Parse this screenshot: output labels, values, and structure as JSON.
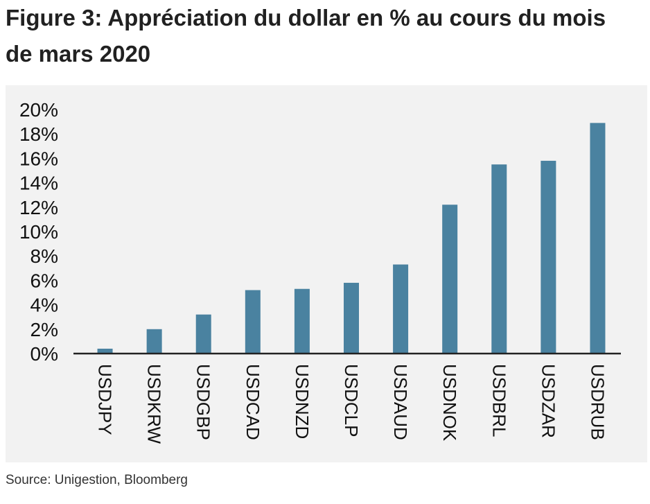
{
  "title": "Figure 3: Appréciation du dollar en % au cours du mois de mars 2020",
  "source": "Source: Unigestion, Bloomberg",
  "colors": {
    "bar": "#4a82a0",
    "panel_background": "#f2f2f2",
    "axis": "#222222"
  },
  "chart_data": {
    "type": "bar",
    "title": "",
    "xlabel": "",
    "ylabel": "",
    "categories": [
      "USDJPY",
      "USDKRW",
      "USDGBP",
      "USDCAD",
      "USDNZD",
      "USDCLP",
      "USDAUD",
      "USDNOK",
      "USDBRL",
      "USDZAR",
      "USDRUB"
    ],
    "values": [
      0.4,
      2.0,
      3.2,
      5.2,
      5.3,
      5.8,
      7.3,
      12.2,
      15.5,
      15.8,
      18.9
    ],
    "ylim": [
      0,
      20
    ],
    "yticks": [
      "0%",
      "2%",
      "4%",
      "6%",
      "8%",
      "10%",
      "12%",
      "14%",
      "16%",
      "18%",
      "20%"
    ],
    "grid": false,
    "legend": "none"
  }
}
